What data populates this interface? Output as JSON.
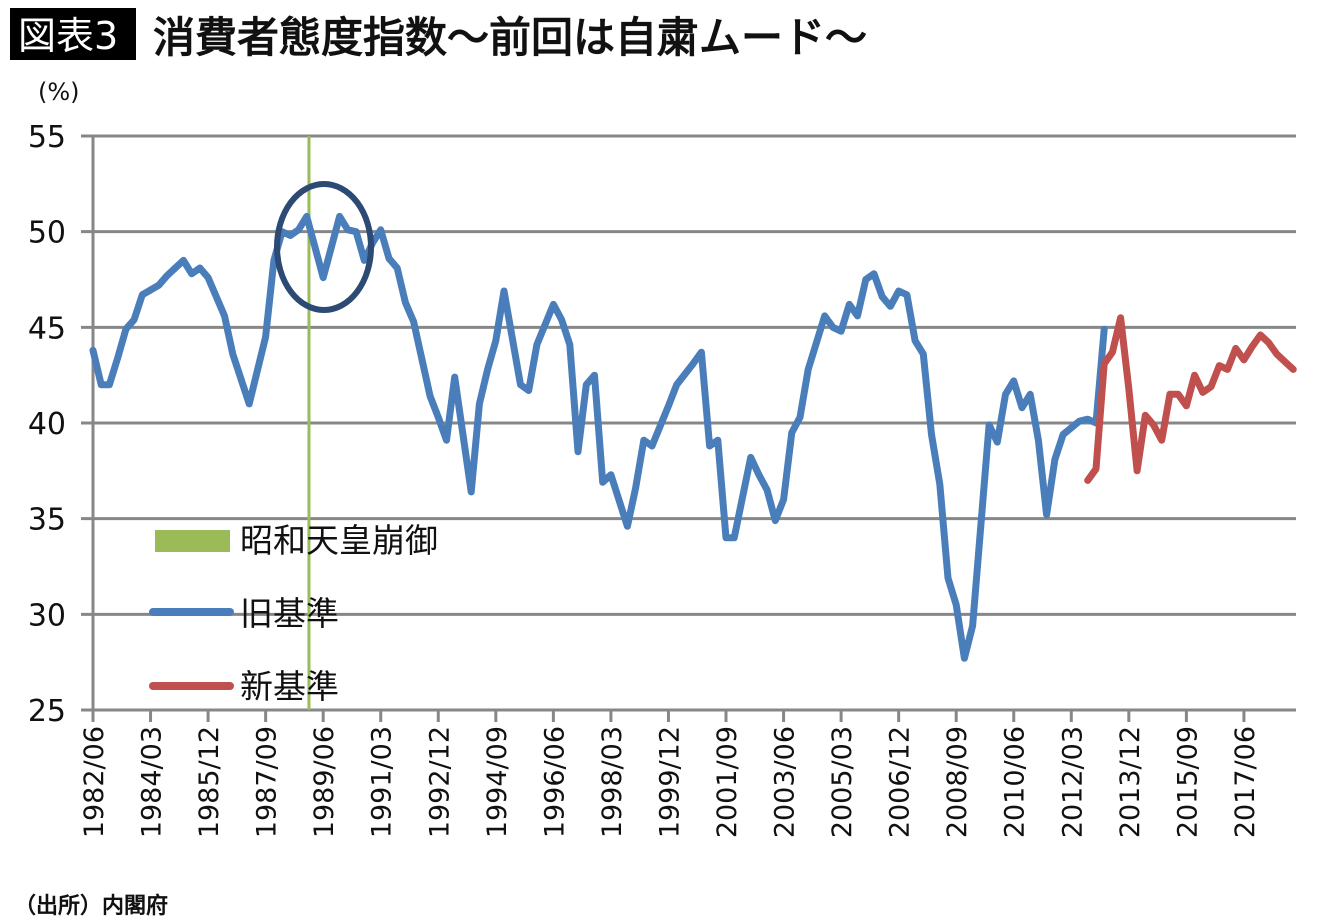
{
  "header": {
    "badge": "図表3",
    "title": "消費者態度指数〜前回は自粛ムード〜"
  },
  "source": "（出所）内閣府",
  "chart_data": {
    "type": "line",
    "title": "消費者態度指数〜前回は自粛ムード〜",
    "ylabel": "(%)",
    "xlabel": "",
    "ylim": [
      25,
      55
    ],
    "yticks": [
      "25",
      "30",
      "35",
      "40",
      "45",
      "50",
      "55"
    ],
    "xlim": [
      "1982/06",
      "2019/01"
    ],
    "xticks": [
      "1982/06",
      "1984/03",
      "1985/12",
      "1987/09",
      "1989/06",
      "1991/03",
      "1992/12",
      "1994/09",
      "1996/06",
      "1998/03",
      "1999/12",
      "2001/09",
      "2003/06",
      "2005/03",
      "2006/12",
      "2008/09",
      "2010/06",
      "2012/03",
      "2013/12",
      "2015/09",
      "2017/06"
    ],
    "grid": true,
    "legend_placement": "lower-left inside",
    "marker": {
      "name": "昭和天皇崩御",
      "date": "1989/03",
      "color": "#9bbb59"
    },
    "annotation": {
      "shape": "ellipse",
      "around": "1988/12–1990/09",
      "color": "#2c4a73"
    },
    "series": [
      {
        "name": "旧基準",
        "color": "#4a7ebb",
        "points": [
          [
            "1982/06",
            43.8
          ],
          [
            "1982/09",
            42.0
          ],
          [
            "1982/12",
            42.0
          ],
          [
            "1983/03",
            43.4
          ],
          [
            "1983/06",
            44.9
          ],
          [
            "1983/09",
            45.4
          ],
          [
            "1983/12",
            46.7
          ],
          [
            "1984/06",
            47.2
          ],
          [
            "1984/09",
            47.7
          ],
          [
            "1985/03",
            48.5
          ],
          [
            "1985/06",
            47.8
          ],
          [
            "1985/09",
            48.1
          ],
          [
            "1985/12",
            47.6
          ],
          [
            "1986/06",
            45.6
          ],
          [
            "1986/09",
            43.6
          ],
          [
            "1987/03",
            41.0
          ],
          [
            "1987/09",
            44.5
          ],
          [
            "1987/12",
            48.5
          ],
          [
            "1988/03",
            50.0
          ],
          [
            "1988/06",
            49.8
          ],
          [
            "1988/09",
            50.1
          ],
          [
            "1988/12",
            50.8
          ],
          [
            "1989/06",
            47.6
          ],
          [
            "1989/12",
            50.8
          ],
          [
            "1990/03",
            50.1
          ],
          [
            "1990/06",
            50.0
          ],
          [
            "1990/09",
            48.5
          ],
          [
            "1990/12",
            49.4
          ],
          [
            "1991/03",
            50.1
          ],
          [
            "1991/06",
            48.6
          ],
          [
            "1991/09",
            48.1
          ],
          [
            "1991/12",
            46.3
          ],
          [
            "1992/03",
            45.3
          ],
          [
            "1992/09",
            41.4
          ],
          [
            "1992/12",
            40.3
          ],
          [
            "1993/03",
            39.1
          ],
          [
            "1993/06",
            42.4
          ],
          [
            "1993/12",
            36.4
          ],
          [
            "1994/03",
            41.0
          ],
          [
            "1994/06",
            42.8
          ],
          [
            "1994/09",
            44.3
          ],
          [
            "1994/12",
            46.9
          ],
          [
            "1995/06",
            42.0
          ],
          [
            "1995/09",
            41.7
          ],
          [
            "1995/12",
            44.1
          ],
          [
            "1996/06",
            46.2
          ],
          [
            "1996/09",
            45.4
          ],
          [
            "1996/12",
            44.1
          ],
          [
            "1997/03",
            38.5
          ],
          [
            "1997/06",
            42.0
          ],
          [
            "1997/09",
            42.5
          ],
          [
            "1997/12",
            36.9
          ],
          [
            "1998/03",
            37.3
          ],
          [
            "1998/09",
            34.6
          ],
          [
            "1998/12",
            36.6
          ],
          [
            "1999/03",
            39.1
          ],
          [
            "1999/06",
            38.8
          ],
          [
            "1999/12",
            40.9
          ],
          [
            "2000/03",
            42.0
          ],
          [
            "2000/09",
            43.1
          ],
          [
            "2000/12",
            43.7
          ],
          [
            "2001/03",
            38.8
          ],
          [
            "2001/06",
            39.1
          ],
          [
            "2001/09",
            34.0
          ],
          [
            "2001/12",
            34.0
          ],
          [
            "2002/06",
            38.2
          ],
          [
            "2002/09",
            37.3
          ],
          [
            "2002/12",
            36.5
          ],
          [
            "2003/03",
            34.9
          ],
          [
            "2003/06",
            36.0
          ],
          [
            "2003/09",
            39.5
          ],
          [
            "2003/12",
            40.3
          ],
          [
            "2004/03",
            42.8
          ],
          [
            "2004/09",
            45.6
          ],
          [
            "2004/12",
            45.0
          ],
          [
            "2005/03",
            44.8
          ],
          [
            "2005/06",
            46.2
          ],
          [
            "2005/09",
            45.6
          ],
          [
            "2005/12",
            47.5
          ],
          [
            "2006/03",
            47.8
          ],
          [
            "2006/06",
            46.6
          ],
          [
            "2006/09",
            46.1
          ],
          [
            "2006/12",
            46.9
          ],
          [
            "2007/03",
            46.7
          ],
          [
            "2007/06",
            44.3
          ],
          [
            "2007/09",
            43.6
          ],
          [
            "2007/12",
            39.4
          ],
          [
            "2008/03",
            36.8
          ],
          [
            "2008/06",
            31.9
          ],
          [
            "2008/09",
            30.5
          ],
          [
            "2008/12",
            27.7
          ],
          [
            "2009/03",
            29.4
          ],
          [
            "2009/09",
            39.9
          ],
          [
            "2009/12",
            39.0
          ],
          [
            "2010/03",
            41.5
          ],
          [
            "2010/06",
            42.2
          ],
          [
            "2010/09",
            40.8
          ],
          [
            "2010/12",
            41.5
          ],
          [
            "2011/03",
            39.1
          ],
          [
            "2011/06",
            35.2
          ],
          [
            "2011/09",
            38.1
          ],
          [
            "2011/12",
            39.4
          ],
          [
            "2012/06",
            40.1
          ],
          [
            "2012/09",
            40.2
          ],
          [
            "2012/12",
            40.0
          ],
          [
            "2013/03",
            44.9
          ]
        ]
      },
      {
        "name": "新基準",
        "color": "#c0504d",
        "points": [
          [
            "2012/09",
            37.0
          ],
          [
            "2012/12",
            37.6
          ],
          [
            "2013/03",
            43.1
          ],
          [
            "2013/06",
            43.7
          ],
          [
            "2013/09",
            45.5
          ],
          [
            "2013/12",
            41.8
          ],
          [
            "2014/03",
            37.5
          ],
          [
            "2014/06",
            40.4
          ],
          [
            "2014/09",
            39.9
          ],
          [
            "2014/12",
            39.1
          ],
          [
            "2015/03",
            41.5
          ],
          [
            "2015/06",
            41.5
          ],
          [
            "2015/09",
            40.9
          ],
          [
            "2015/12",
            42.5
          ],
          [
            "2016/03",
            41.6
          ],
          [
            "2016/06",
            41.9
          ],
          [
            "2016/09",
            43.0
          ],
          [
            "2016/12",
            42.8
          ],
          [
            "2017/03",
            43.9
          ],
          [
            "2017/06",
            43.3
          ],
          [
            "2017/09",
            44.0
          ],
          [
            "2017/12",
            44.6
          ],
          [
            "2018/03",
            44.2
          ],
          [
            "2018/06",
            43.6
          ],
          [
            "2018/09",
            43.2
          ],
          [
            "2018/12",
            42.8
          ]
        ]
      }
    ]
  }
}
